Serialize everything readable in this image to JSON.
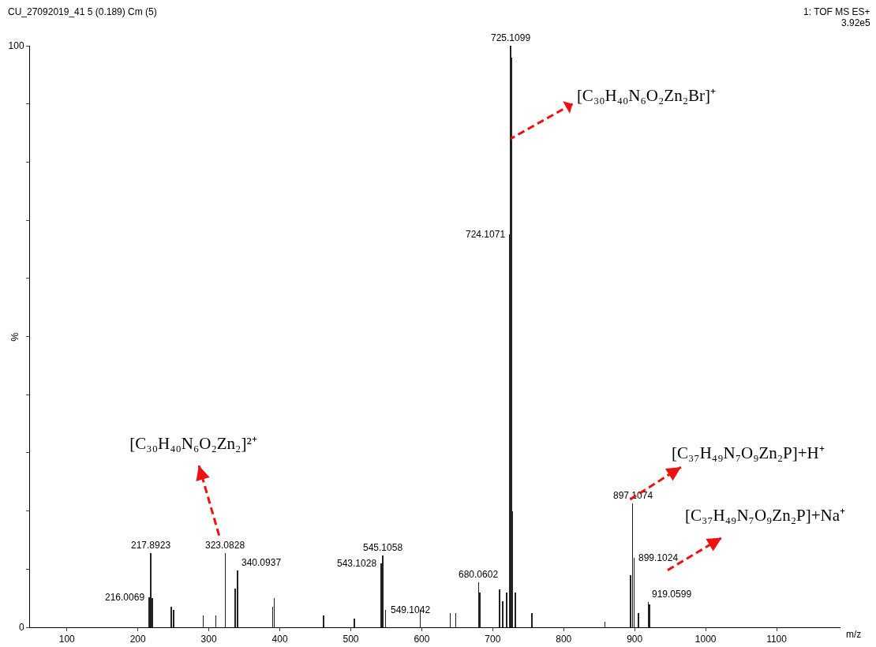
{
  "chart_data": {
    "type": "bar",
    "xlabel": "m/z",
    "ylabel": "%",
    "color": "#222222",
    "x": [
      216.0,
      217.9,
      220,
      247,
      250,
      292,
      310,
      323.1,
      337,
      340.1,
      390,
      392,
      462,
      505,
      543.1,
      545.1,
      549.1,
      598,
      640,
      648,
      680.1,
      682,
      710,
      714,
      720,
      724.1,
      725.1,
      726.1,
      728,
      732,
      755,
      858,
      894,
      897.1,
      899.1,
      905,
      919.1,
      921
    ],
    "values": [
      5.1,
      12.7,
      5,
      3.5,
      3,
      2,
      2,
      12.7,
      6.7,
      9.8,
      3.5,
      5,
      2,
      1.5,
      11,
      12.4,
      3,
      3,
      2.5,
      2.5,
      7.8,
      6,
      6.5,
      4.5,
      6,
      67.6,
      100,
      98,
      20,
      6,
      2.5,
      1,
      9,
      21.3,
      12,
      2.5,
      4.3,
      4
    ],
    "xlim": [
      48,
      1190
    ],
    "xticks": [
      100,
      200,
      300,
      400,
      500,
      600,
      700,
      800,
      900,
      1000,
      1100
    ],
    "ylim": [
      0,
      100
    ],
    "yticks": [
      0,
      {
        "value": 10,
        "label": null
      },
      {
        "value": 20,
        "label": null
      },
      {
        "value": 30,
        "label": null
      },
      {
        "value": 40,
        "label": null
      },
      {
        "value": 50,
        "label": null
      },
      {
        "value": 60,
        "label": null
      },
      {
        "value": 70,
        "label": null
      },
      {
        "value": 80,
        "label": null
      },
      {
        "value": 90,
        "label": null
      },
      100
    ],
    "grid": false,
    "annotations": [
      "CU_27092019_41 5 (0.189) Cm (5)",
      "1: TOF MS ES+",
      "3.92e5",
      {
        "text": "216.0069",
        "x": 216.0,
        "y": 5.1
      },
      {
        "text": "217.8923",
        "x": 217.9,
        "y": 12.7
      },
      {
        "text": "323.0828",
        "x": 323.1,
        "y": 12.7
      },
      {
        "text": "340.0937",
        "x": 340.1,
        "y": 9.8
      },
      {
        "text": "543.1028",
        "x": 543.1,
        "y": 11
      },
      {
        "text": "545.1058",
        "x": 545.1,
        "y": 12.4
      },
      {
        "text": "549.1042",
        "x": 549.1,
        "y": 3
      },
      {
        "text": "680.0602",
        "x": 680.1,
        "y": 7.8
      },
      {
        "text": "724.1071",
        "x": 724.1,
        "y": 67.6
      },
      {
        "text": "725.1099",
        "x": 725.1,
        "y": 100
      },
      {
        "text": "897.1074",
        "x": 897.1,
        "y": 21.3
      },
      {
        "text": "899.1024",
        "x": 899.1,
        "y": 12
      },
      {
        "text": "919.0599",
        "x": 919.1,
        "y": 4.3
      },
      {
        "text": "[C₃₀H₄₀N₆O₂Zn₂Br]⁺",
        "x": 725.1,
        "y": 84
      },
      "[C₃₀H₄₀N₆O₂Zn₂]²⁺",
      "[C₃₇H₄₉N₇O₉Zn₂P]+H⁺",
      "[C₃₇H₄₉N₇O₉Zn₂P]+Na⁺"
    ]
  }
}
